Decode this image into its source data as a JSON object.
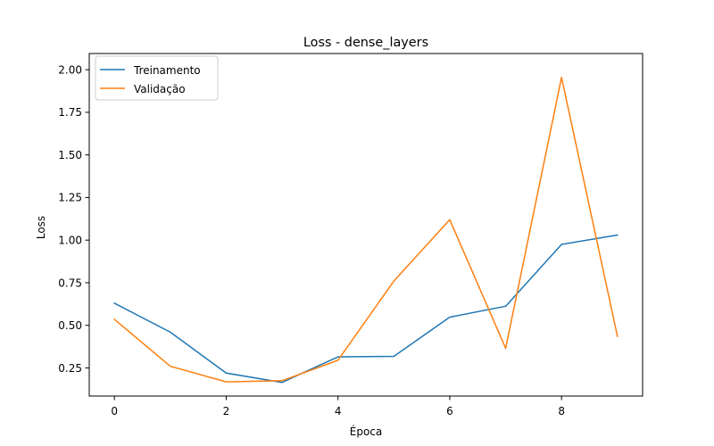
{
  "chart_data": {
    "type": "line",
    "title": "Loss - dense_layers",
    "xlabel": "Época",
    "ylabel": "Loss",
    "x": [
      0,
      1,
      2,
      3,
      4,
      5,
      6,
      7,
      8,
      9
    ],
    "xlim": [
      -0.45,
      9.45
    ],
    "ylim": [
      0.085,
      2.095
    ],
    "xticks": [
      0,
      2,
      4,
      6,
      8
    ],
    "yticks": [
      0.25,
      0.5,
      0.75,
      1.0,
      1.25,
      1.5,
      1.75,
      2.0
    ],
    "ytick_labels": [
      "0.25",
      "0.50",
      "0.75",
      "1.00",
      "1.25",
      "1.50",
      "1.75",
      "2.00"
    ],
    "grid": false,
    "legend_position": "top-left",
    "series": [
      {
        "name": "Treinamento",
        "color": "#1f77b4",
        "values": [
          0.63,
          0.46,
          0.22,
          0.165,
          0.315,
          0.318,
          0.548,
          0.612,
          0.975,
          1.03
        ]
      },
      {
        "name": "Validação",
        "color": "#ff7f0e",
        "values": [
          0.535,
          0.26,
          0.168,
          0.175,
          0.295,
          0.76,
          1.12,
          0.365,
          1.955,
          0.435
        ]
      }
    ]
  }
}
